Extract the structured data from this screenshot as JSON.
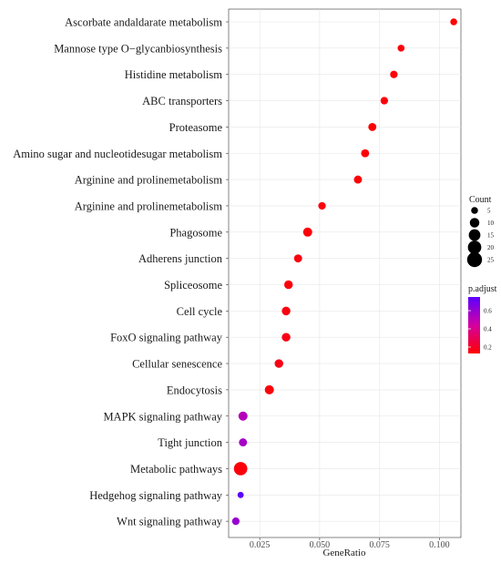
{
  "chart_data": {
    "type": "scatter",
    "xlabel": "GeneRatio",
    "xlim": [
      0.012,
      0.109
    ],
    "x_ticks": [
      0.025,
      0.05,
      0.075,
      0.1
    ],
    "x_tick_labels": [
      "0.025",
      "0.050",
      "0.075",
      "0.100"
    ],
    "grid": true,
    "legend_placement": "right",
    "categories": [
      "Ascorbate andaldarate metabolism",
      "Mannose type O−glycanbiosynthesis",
      "Histidine metabolism",
      "ABC transporters",
      "Proteasome",
      "Amino sugar and nucleotidesugar metabolism",
      "Arginine and prolinemetabolism",
      "Arginine and prolinemetabolism",
      "Phagosome",
      "Adherens junction",
      "Spliceosome",
      "Cell cycle",
      "FoxO signaling pathway",
      "Cellular senescence",
      "Endocytosis",
      "MAPK signaling pathway",
      "Tight junction",
      "Metabolic pathways",
      "Hedgehog signaling pathway",
      "Wnt signaling pathway"
    ],
    "gene_ratio": [
      0.106,
      0.084,
      0.081,
      0.077,
      0.072,
      0.069,
      0.066,
      0.051,
      0.045,
      0.041,
      0.037,
      0.036,
      0.036,
      0.033,
      0.029,
      0.018,
      0.018,
      0.017,
      0.017,
      0.015
    ],
    "count": [
      5,
      5,
      6,
      6,
      7,
      7,
      7,
      6,
      9,
      7,
      8,
      8,
      8,
      8,
      9,
      9,
      7,
      20,
      4,
      6
    ],
    "p_adjust": [
      0.13,
      0.15,
      0.15,
      0.15,
      0.13,
      0.15,
      0.14,
      0.16,
      0.15,
      0.16,
      0.15,
      0.16,
      0.17,
      0.17,
      0.15,
      0.52,
      0.56,
      0.15,
      0.75,
      0.6
    ],
    "size_legend": {
      "title": "Count",
      "values": [
        5,
        10,
        15,
        20,
        25
      ],
      "labels": [
        "5",
        "10",
        "15",
        "20",
        "25"
      ]
    },
    "color_legend": {
      "title": "p.adjust",
      "ticks": [
        0.2,
        0.4,
        0.6
      ],
      "tick_labels": [
        "0.2",
        "0.4",
        "0.6"
      ],
      "range": [
        0.13,
        0.75
      ],
      "low_color": "#ff0000",
      "high_color": "#5b00ff"
    }
  }
}
